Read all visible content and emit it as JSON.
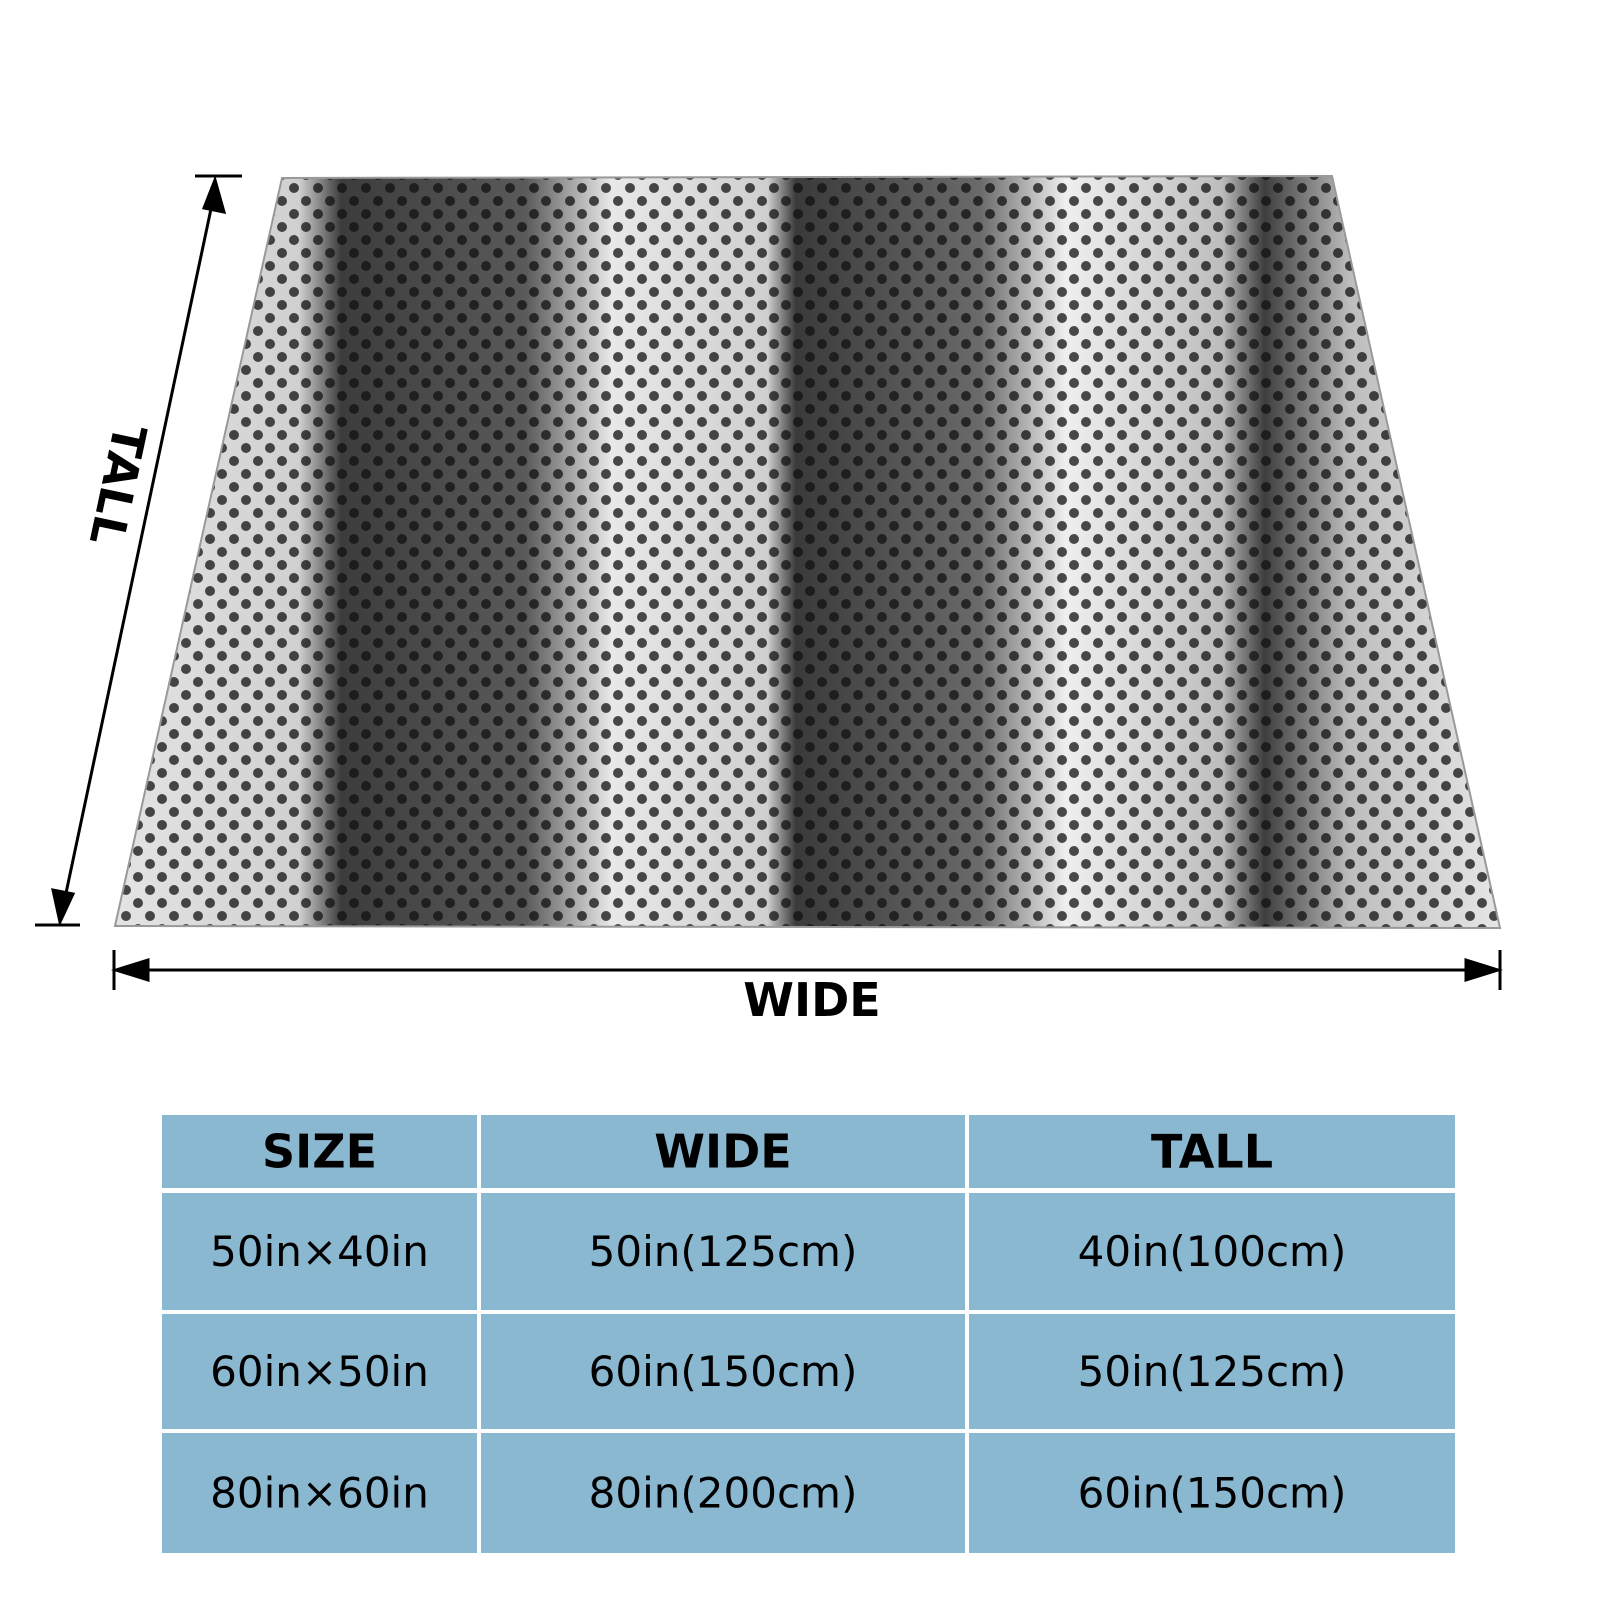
{
  "dimension_labels": {
    "tall": "TALL",
    "wide": "WIDE"
  },
  "table": {
    "header": [
      "SIZE",
      "WIDE",
      "TALL"
    ],
    "rows": [
      [
        "50in×40in",
        "50in(125cm)",
        "40in(100cm)"
      ],
      [
        "60in×50in",
        "60in(150cm)",
        "50in(125cm)"
      ],
      [
        "80in×60in",
        "80in(200cm)",
        "60in(150cm)"
      ]
    ]
  }
}
